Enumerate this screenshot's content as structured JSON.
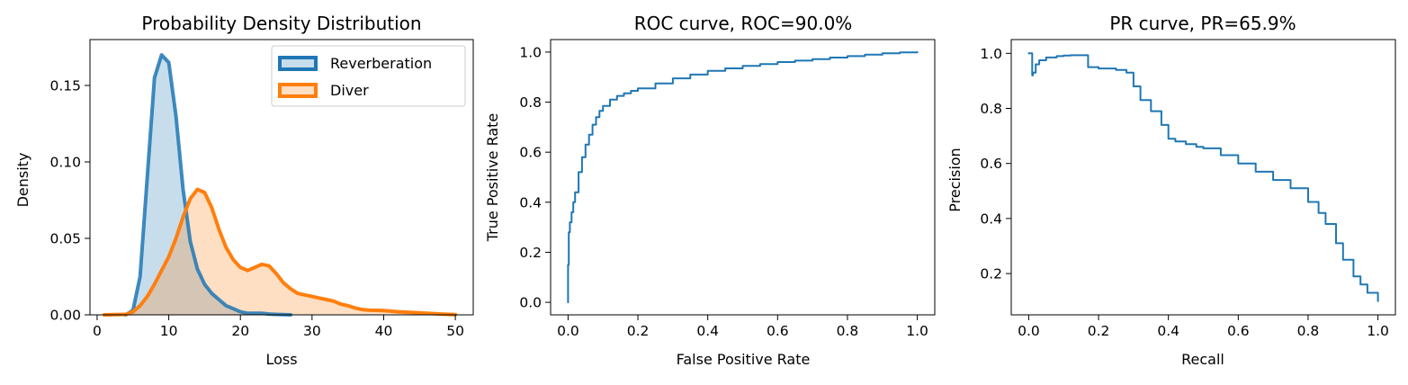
{
  "chart_data": [
    {
      "type": "area",
      "title": "Probability Density Distribution",
      "xlabel": "Loss",
      "ylabel": "Density",
      "xlim": [
        -1,
        52.5
      ],
      "ylim": [
        0,
        0.18
      ],
      "xticks": [
        0,
        10,
        20,
        30,
        40,
        50
      ],
      "yticks": [
        0.0,
        0.05,
        0.1,
        0.15
      ],
      "xtick_labels": [
        "0",
        "10",
        "20",
        "30",
        "40",
        "50"
      ],
      "ytick_labels": [
        "0.00",
        "0.05",
        "0.10",
        "0.15"
      ],
      "legend_position": "top-right",
      "series": [
        {
          "name": "Reverberation",
          "color": "#1f77b4",
          "x": [
            4,
            5,
            6,
            7,
            8,
            9,
            10,
            11,
            12,
            13,
            14,
            15,
            16,
            17,
            18,
            19,
            20,
            21,
            22,
            23,
            24,
            25,
            26,
            27
          ],
          "y": [
            0.0,
            0.003,
            0.025,
            0.09,
            0.155,
            0.17,
            0.165,
            0.13,
            0.082,
            0.048,
            0.03,
            0.02,
            0.014,
            0.01,
            0.006,
            0.004,
            0.002,
            0.001,
            0.001,
            0.001,
            0.0005,
            0.0003,
            0.0001,
            0.0
          ]
        },
        {
          "name": "Diver",
          "color": "#ff7f0e",
          "x": [
            1,
            4,
            5,
            6,
            7,
            8,
            9,
            10,
            11,
            12,
            13,
            14,
            15,
            16,
            17,
            18,
            19,
            20,
            21,
            22,
            23,
            24,
            25,
            26,
            27,
            28,
            29,
            30,
            31,
            32,
            33,
            34,
            35,
            36,
            37,
            38,
            40,
            42,
            44,
            46,
            48,
            50
          ],
          "y": [
            0.0,
            0.0003,
            0.002,
            0.006,
            0.012,
            0.02,
            0.029,
            0.038,
            0.05,
            0.064,
            0.076,
            0.082,
            0.08,
            0.07,
            0.056,
            0.044,
            0.036,
            0.031,
            0.029,
            0.031,
            0.033,
            0.032,
            0.027,
            0.021,
            0.017,
            0.014,
            0.013,
            0.012,
            0.011,
            0.01,
            0.009,
            0.007,
            0.006,
            0.0045,
            0.0035,
            0.003,
            0.0028,
            0.002,
            0.0015,
            0.001,
            0.0005,
            0.0001
          ]
        }
      ]
    },
    {
      "type": "line",
      "title": "ROC curve, ROC=90.0%",
      "xlabel": "False Positive Rate",
      "ylabel": "True Positive Rate",
      "xlim": [
        -0.05,
        1.05
      ],
      "ylim": [
        -0.05,
        1.05
      ],
      "xticks": [
        0.0,
        0.2,
        0.4,
        0.6,
        0.8,
        1.0
      ],
      "yticks": [
        0.0,
        0.2,
        0.4,
        0.6,
        0.8,
        1.0
      ],
      "xtick_labels": [
        "0.0",
        "0.2",
        "0.4",
        "0.6",
        "0.8",
        "1.0"
      ],
      "ytick_labels": [
        "0.0",
        "0.2",
        "0.4",
        "0.6",
        "0.8",
        "1.0"
      ],
      "series": [
        {
          "color": "#1f77b4",
          "x": [
            0.0,
            0.0,
            0.002,
            0.005,
            0.01,
            0.015,
            0.02,
            0.03,
            0.04,
            0.05,
            0.06,
            0.07,
            0.08,
            0.09,
            0.1,
            0.12,
            0.14,
            0.16,
            0.18,
            0.2,
            0.25,
            0.3,
            0.35,
            0.4,
            0.45,
            0.5,
            0.55,
            0.6,
            0.65,
            0.7,
            0.75,
            0.8,
            0.85,
            0.9,
            0.95,
            1.0
          ],
          "y": [
            0.0,
            0.15,
            0.28,
            0.32,
            0.36,
            0.4,
            0.44,
            0.52,
            0.58,
            0.63,
            0.67,
            0.71,
            0.74,
            0.765,
            0.785,
            0.81,
            0.825,
            0.835,
            0.845,
            0.855,
            0.875,
            0.895,
            0.91,
            0.925,
            0.935,
            0.945,
            0.952,
            0.96,
            0.966,
            0.972,
            0.978,
            0.984,
            0.99,
            0.995,
            0.999,
            1.0
          ]
        }
      ]
    },
    {
      "type": "line",
      "title": "PR curve, PR=65.9%",
      "xlabel": "Recall",
      "ylabel": "Precision",
      "xlim": [
        -0.05,
        1.05
      ],
      "ylim": [
        0.05,
        1.05
      ],
      "xticks": [
        0.0,
        0.2,
        0.4,
        0.6,
        0.8,
        1.0
      ],
      "yticks": [
        0.2,
        0.4,
        0.6,
        0.8,
        1.0
      ],
      "xtick_labels": [
        "0.0",
        "0.2",
        "0.4",
        "0.6",
        "0.8",
        "1.0"
      ],
      "ytick_labels": [
        "0.2",
        "0.4",
        "0.6",
        "0.8",
        "1.0"
      ],
      "series": [
        {
          "color": "#1f77b4",
          "x": [
            0.0,
            0.01,
            0.01,
            0.012,
            0.02,
            0.03,
            0.05,
            0.08,
            0.1,
            0.12,
            0.15,
            0.17,
            0.2,
            0.25,
            0.28,
            0.3,
            0.32,
            0.35,
            0.38,
            0.4,
            0.42,
            0.45,
            0.48,
            0.5,
            0.55,
            0.6,
            0.65,
            0.7,
            0.75,
            0.8,
            0.83,
            0.85,
            0.88,
            0.9,
            0.93,
            0.95,
            0.97,
            1.0
          ],
          "y": [
            1.0,
            1.0,
            0.92,
            0.93,
            0.96,
            0.975,
            0.985,
            0.99,
            0.992,
            0.993,
            0.993,
            0.95,
            0.945,
            0.94,
            0.93,
            0.88,
            0.83,
            0.79,
            0.74,
            0.69,
            0.68,
            0.67,
            0.66,
            0.655,
            0.63,
            0.6,
            0.57,
            0.54,
            0.51,
            0.46,
            0.42,
            0.38,
            0.31,
            0.25,
            0.19,
            0.16,
            0.13,
            0.1
          ]
        }
      ]
    }
  ]
}
